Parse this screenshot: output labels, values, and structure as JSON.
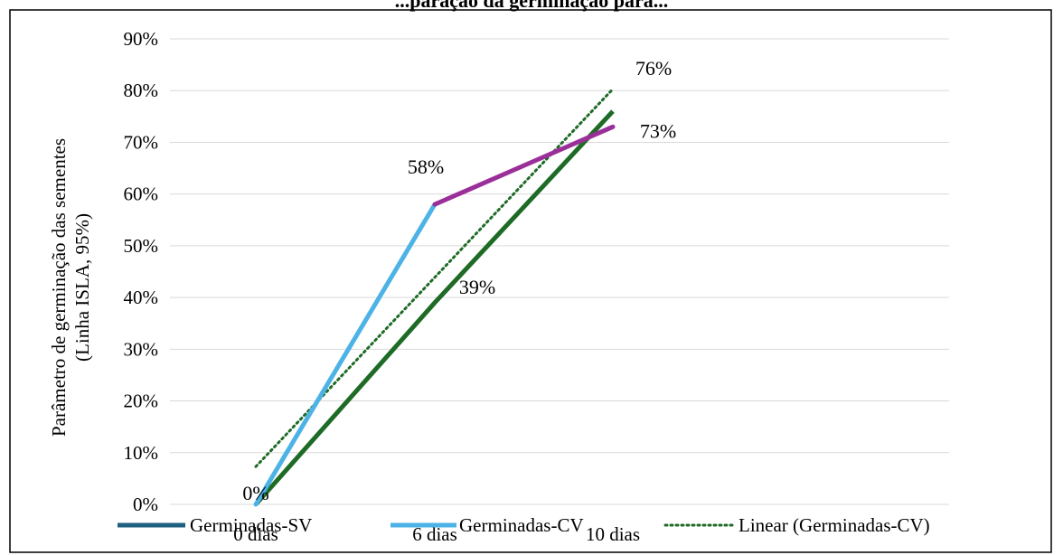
{
  "chart_data": {
    "type": "line",
    "title": "...paração da germinação para...",
    "ylabel_line1": "Parâmetro de germinação das sementes",
    "ylabel_line2": "(Linha ISLA, 95%)",
    "categories": [
      "0 dias",
      "6 dias",
      "10 dias"
    ],
    "y_ticks": [
      "0%",
      "10%",
      "20%",
      "30%",
      "40%",
      "50%",
      "60%",
      "70%",
      "80%",
      "90%"
    ],
    "ylim": [
      0,
      90
    ],
    "grid": true,
    "legend_placement": "bottom",
    "series": [
      {
        "name": "Germinadas-SV",
        "values": [
          0,
          39,
          76
        ],
        "color": "#1e6b26"
      },
      {
        "name": "Germinadas-CV",
        "values": [
          0,
          58,
          73
        ],
        "color": "#4db3e6",
        "segment_color": "#9b2f9a"
      },
      {
        "name": "Linear (Germinadas-CV)",
        "values": [
          7.3,
          43.8,
          80.3
        ],
        "color": "#1e6b26",
        "style": "dotted"
      }
    ],
    "legend_swatch_sv": "#1f5f80",
    "data_labels": [
      {
        "text": "0%",
        "series": 0,
        "index": 0
      },
      {
        "text": "39%",
        "series": 0,
        "index": 1
      },
      {
        "text": "76%",
        "series": 0,
        "index": 2
      },
      {
        "text": "58%",
        "series": 1,
        "index": 1
      },
      {
        "text": "73%",
        "series": 1,
        "index": 2
      }
    ]
  }
}
